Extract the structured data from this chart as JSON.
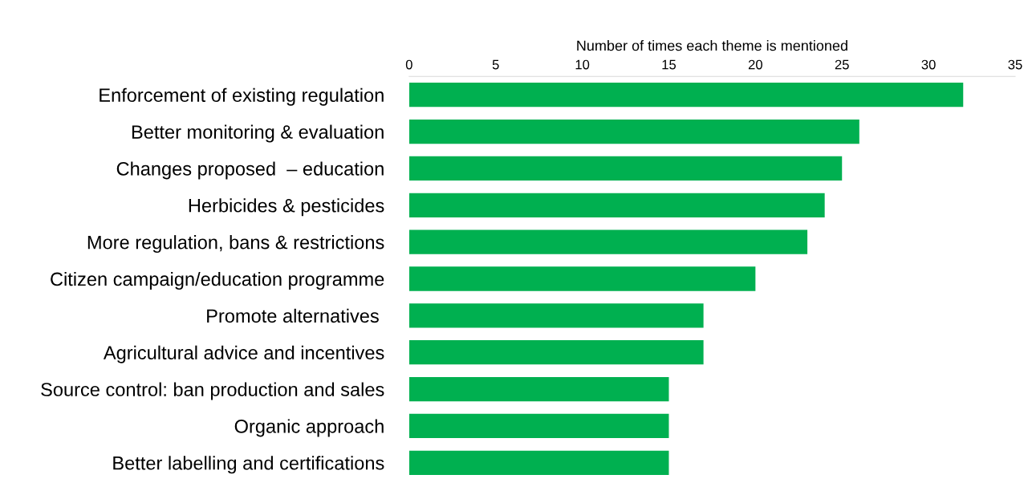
{
  "chart_data": {
    "type": "bar",
    "orientation": "horizontal",
    "xlabel": "Number of times each theme is mentioned",
    "categories": [
      "Enforcement of existing regulation",
      "Better monitoring & evaluation",
      "Changes proposed  – education",
      "Herbicides & pesticides",
      "More regulation, bans & restrictions",
      "Citizen campaign/education programme",
      "Promote alternatives ",
      "Agricultural advice and incentives",
      "Source control: ban production and sales",
      "Organic approach",
      "Better labelling and certifications"
    ],
    "values": [
      32,
      26,
      25,
      24,
      23,
      20,
      17,
      17,
      15,
      15,
      15
    ],
    "color": "#00b050",
    "xlim": [
      0,
      35
    ],
    "xticks": [
      0,
      5,
      10,
      15,
      20,
      25,
      30,
      35
    ],
    "grid": false,
    "legend": false
  }
}
